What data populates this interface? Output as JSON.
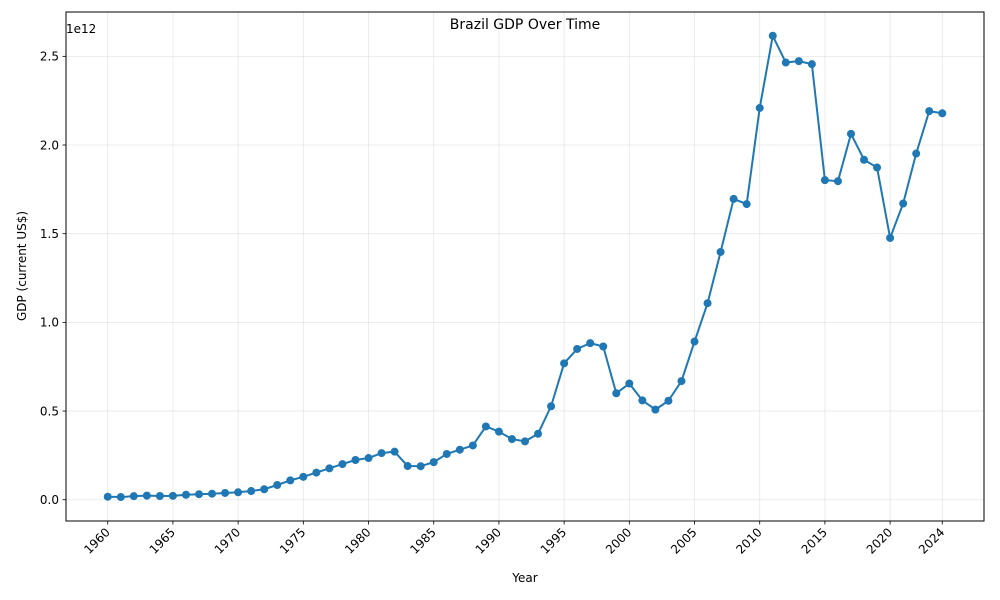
{
  "chart_data": {
    "type": "line",
    "title": "Brazil GDP Over Time",
    "xlabel": "Year",
    "ylabel": "GDP (current US$)",
    "offset_label": "1e12",
    "x_ticks": [
      "1960",
      "1965",
      "1970",
      "1975",
      "1980",
      "1985",
      "1990",
      "1995",
      "2000",
      "2005",
      "2010",
      "2015",
      "2020",
      "2024"
    ],
    "y_ticks": [
      "0.0",
      "0.5",
      "1.0",
      "1.5",
      "2.0",
      "2.5"
    ],
    "xlim": [
      1956.8,
      2027.2
    ],
    "ylim": [
      -0.12,
      2.75
    ],
    "grid": true,
    "color": "#1f77b4",
    "series": [
      {
        "x": [
          1960,
          1961,
          1962,
          1963,
          1964,
          1965,
          1966,
          1967,
          1968,
          1969,
          1970,
          1971,
          1972,
          1973,
          1974,
          1975,
          1976,
          1977,
          1978,
          1979,
          1980,
          1981,
          1982,
          1983,
          1984,
          1985,
          1986,
          1987,
          1988,
          1989,
          1990,
          1991,
          1992,
          1993,
          1994,
          1995,
          1996,
          1997,
          1998,
          1999,
          2000,
          2001,
          2002,
          2003,
          2004,
          2005,
          2006,
          2007,
          2008,
          2009,
          2010,
          2011,
          2012,
          2013,
          2014,
          2015,
          2016,
          2017,
          2018,
          2019,
          2020,
          2021,
          2022,
          2023,
          2024
        ],
        "values": [
          0.017,
          0.015,
          0.02,
          0.023,
          0.021,
          0.022,
          0.028,
          0.031,
          0.034,
          0.038,
          0.042,
          0.049,
          0.059,
          0.083,
          0.109,
          0.129,
          0.153,
          0.177,
          0.201,
          0.224,
          0.235,
          0.263,
          0.271,
          0.19,
          0.189,
          0.212,
          0.258,
          0.282,
          0.306,
          0.413,
          0.384,
          0.342,
          0.329,
          0.372,
          0.527,
          0.769,
          0.85,
          0.883,
          0.864,
          0.6,
          0.655,
          0.56,
          0.508,
          0.558,
          0.669,
          0.892,
          1.108,
          1.397,
          1.696,
          1.667,
          2.209,
          2.616,
          2.465,
          2.473,
          2.456,
          1.802,
          1.796,
          2.063,
          1.917,
          1.873,
          1.476,
          1.67,
          1.952,
          2.191,
          2.179
        ]
      }
    ]
  }
}
